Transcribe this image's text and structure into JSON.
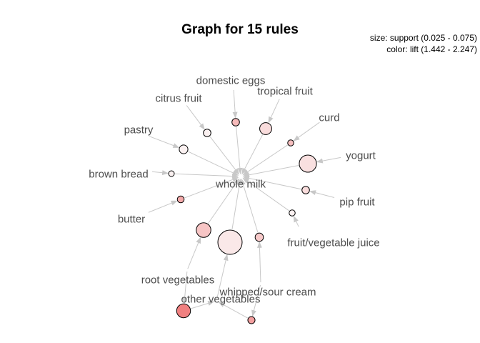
{
  "title": "Graph for 15 rules",
  "legend": {
    "size_text": "size: support (0.025 - 0.075)",
    "color_text": "color: lift (1.442 - 2.247)"
  },
  "colors": {
    "edge": "#c8c8c8",
    "item_label": "#4d4d4d",
    "lift_low": "#fbf2f2",
    "lift_high": "#f08080"
  },
  "items": [
    {
      "id": "whole_milk",
      "label": "whole milk"
    },
    {
      "id": "domestic_eggs",
      "label": "domestic eggs"
    },
    {
      "id": "citrus_fruit",
      "label": "citrus fruit"
    },
    {
      "id": "tropical_fruit",
      "label": "tropical fruit"
    },
    {
      "id": "curd",
      "label": "curd"
    },
    {
      "id": "pastry",
      "label": "pastry"
    },
    {
      "id": "yogurt",
      "label": "yogurt"
    },
    {
      "id": "brown_bread",
      "label": "brown bread"
    },
    {
      "id": "pip_fruit",
      "label": "pip fruit"
    },
    {
      "id": "butter",
      "label": "butter"
    },
    {
      "id": "fruit_vegetable_juice",
      "label": "fruit/vegetable juice"
    },
    {
      "id": "root_vegetables",
      "label": "root vegetables"
    },
    {
      "id": "whipped_sour_cream",
      "label": "whipped/sour cream"
    },
    {
      "id": "other_vegetables",
      "label": "other vegetables"
    }
  ],
  "rules": [
    {
      "lhs": [
        "domestic_eggs"
      ],
      "rhs": "whole_milk",
      "support": 0.03,
      "lift": 1.84
    },
    {
      "lhs": [
        "citrus_fruit"
      ],
      "rhs": "whole_milk",
      "support": 0.03,
      "lift": 1.45
    },
    {
      "lhs": [
        "tropical_fruit"
      ],
      "rhs": "whole_milk",
      "support": 0.042,
      "lift": 1.6
    },
    {
      "lhs": [
        "curd"
      ],
      "rhs": "whole_milk",
      "support": 0.026,
      "lift": 1.8
    },
    {
      "lhs": [
        "pastry"
      ],
      "rhs": "whole_milk",
      "support": 0.033,
      "lift": 1.45
    },
    {
      "lhs": [
        "yogurt"
      ],
      "rhs": "whole_milk",
      "support": 0.056,
      "lift": 1.57
    },
    {
      "lhs": [
        "brown_bread"
      ],
      "rhs": "whole_milk",
      "support": 0.025,
      "lift": 1.44
    },
    {
      "lhs": [
        "pip_fruit"
      ],
      "rhs": "whole_milk",
      "support": 0.03,
      "lift": 1.6
    },
    {
      "lhs": [
        "butter"
      ],
      "rhs": "whole_milk",
      "support": 0.028,
      "lift": 1.95
    },
    {
      "lhs": [
        "fruit_vegetable_juice"
      ],
      "rhs": "whole_milk",
      "support": 0.026,
      "lift": 1.45
    },
    {
      "lhs": [
        "root_vegetables"
      ],
      "rhs": "whole_milk",
      "support": 0.049,
      "lift": 1.76
    },
    {
      "lhs": [
        "whipped_sour_cream"
      ],
      "rhs": "whole_milk",
      "support": 0.032,
      "lift": 1.73
    },
    {
      "lhs": [
        "other_vegetables"
      ],
      "rhs": "whole_milk",
      "support": 0.075,
      "lift": 1.51
    },
    {
      "lhs": [
        "root_vegetables"
      ],
      "rhs": "other_vegetables",
      "support": 0.047,
      "lift": 2.247
    },
    {
      "lhs": [
        "whipped_sour_cream"
      ],
      "rhs": "other_vegetables",
      "support": 0.029,
      "lift": 2.03
    }
  ]
}
